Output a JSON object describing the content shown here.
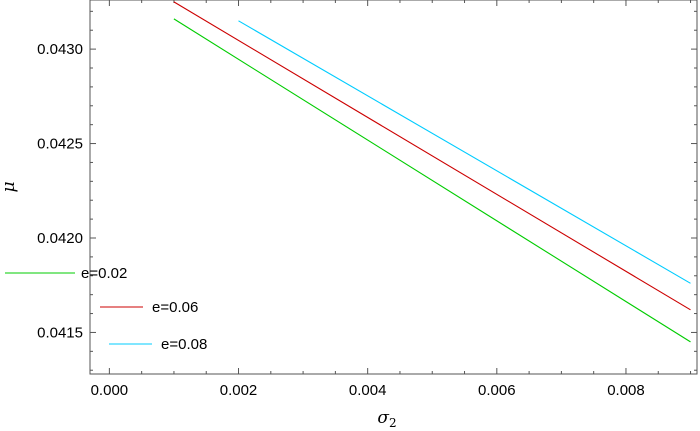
{
  "chart_data": {
    "type": "line",
    "title": "",
    "xlabel": "σ",
    "xlabel_subscript": "2",
    "ylabel": "μ",
    "xlim": [
      -0.0003,
      0.0091
    ],
    "ylim": [
      0.04128,
      0.04326
    ],
    "xticks": [
      0.0,
      0.002,
      0.004,
      0.006,
      0.008
    ],
    "xtick_labels": [
      "0.000",
      "0.002",
      "0.004",
      "0.006",
      "0.008"
    ],
    "yticks": [
      0.0415,
      0.042,
      0.0425,
      0.043
    ],
    "ytick_labels": [
      "0.0415",
      "0.0420",
      "0.0425",
      "0.0430"
    ],
    "grid": false,
    "legend_position": "lower-left",
    "series": [
      {
        "name": "e=0.02",
        "color": "#00cc00",
        "x": [
          0.001,
          0.009
        ],
        "y": [
          0.04316,
          0.04145
        ]
      },
      {
        "name": "e=0.06",
        "color": "#cc0000",
        "x": [
          0.001,
          0.009
        ],
        "y": [
          0.04325,
          0.04162
        ]
      },
      {
        "name": "e=0.08",
        "color": "#00ccff",
        "x": [
          0.002,
          0.009
        ],
        "y": [
          0.04315,
          0.04176
        ]
      }
    ]
  }
}
